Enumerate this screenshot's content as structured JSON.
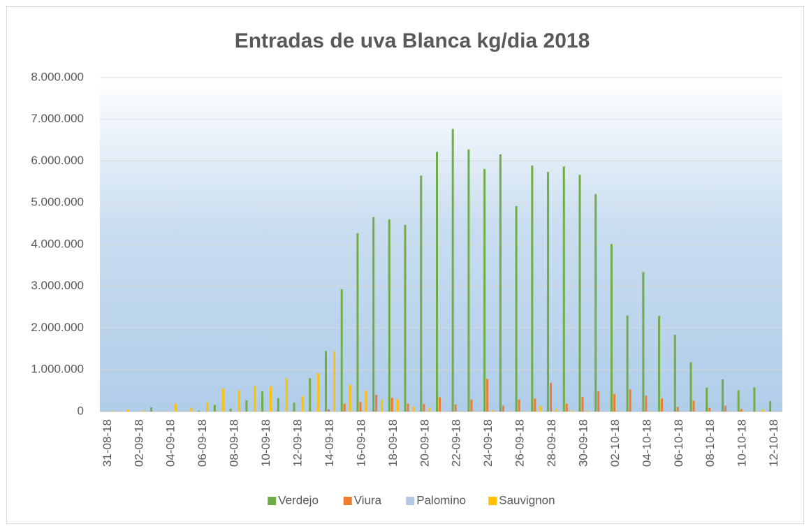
{
  "chart_data": {
    "type": "bar",
    "title": "Entradas de uva Blanca kg/dia 2018",
    "categories": [
      "31-08-18",
      null,
      "02-09-18",
      null,
      "04-09-18",
      null,
      "06-09-18",
      null,
      "08-09-18",
      null,
      "10-09-18",
      null,
      "12-09-18",
      null,
      "14-09-18",
      null,
      "16-09-18",
      null,
      "18-09-18",
      null,
      "20-09-18",
      null,
      "22-09-18",
      null,
      "24-09-18",
      null,
      "26-09-18",
      null,
      "28-09-18",
      null,
      "30-09-18",
      null,
      "02-10-18",
      null,
      "04-10-18",
      null,
      "06-10-18",
      null,
      "08-10-18",
      null,
      "10-10-18",
      null,
      "12-10-18"
    ],
    "series": [
      {
        "name": "Verdejo",
        "color": "#70ad47",
        "values": [
          0,
          0,
          0,
          100000,
          0,
          0,
          20000,
          160000,
          70000,
          270000,
          480000,
          320000,
          210000,
          800000,
          1450000,
          2930000,
          4270000,
          4660000,
          4600000,
          4470000,
          5650000,
          6220000,
          6770000,
          6280000,
          5810000,
          6160000,
          4920000,
          5890000,
          5740000,
          5870000,
          5670000,
          5210000,
          4010000,
          2300000,
          3340000,
          2290000,
          1840000,
          1180000,
          570000,
          770000,
          510000,
          580000,
          250000
        ]
      },
      {
        "name": "Viura",
        "color": "#ed7d31",
        "values": [
          0,
          0,
          0,
          0,
          0,
          0,
          0,
          0,
          0,
          0,
          0,
          0,
          0,
          0,
          50000,
          190000,
          230000,
          400000,
          330000,
          190000,
          180000,
          340000,
          170000,
          290000,
          780000,
          140000,
          290000,
          310000,
          690000,
          190000,
          350000,
          490000,
          420000,
          530000,
          380000,
          310000,
          110000,
          260000,
          90000,
          140000,
          60000,
          0,
          0
        ]
      },
      {
        "name": "Palomino",
        "color": "#b4c7e7",
        "values": [
          0,
          0,
          0,
          0,
          0,
          0,
          0,
          0,
          0,
          0,
          0,
          0,
          0,
          0,
          0,
          0,
          0,
          0,
          0,
          0,
          0,
          0,
          0,
          0,
          0,
          0,
          0,
          0,
          0,
          0,
          0,
          0,
          0,
          0,
          0,
          0,
          0,
          0,
          0,
          0,
          0,
          0,
          0
        ]
      },
      {
        "name": "Sauvignon",
        "color": "#ffc000",
        "values": [
          20000,
          50000,
          20000,
          0,
          190000,
          90000,
          230000,
          550000,
          510000,
          610000,
          600000,
          800000,
          370000,
          920000,
          1440000,
          640000,
          500000,
          280000,
          290000,
          120000,
          90000,
          0,
          0,
          0,
          30000,
          0,
          0,
          130000,
          70000,
          20000,
          20000,
          0,
          0,
          0,
          0,
          0,
          0,
          0,
          0,
          0,
          0,
          50000,
          0
        ]
      }
    ],
    "ylim": [
      0,
      8000000
    ],
    "yticks": [
      0,
      {
        "value": 1000000,
        "label": "1.000.000"
      },
      {
        "value": 2000000,
        "label": "2.000.000"
      },
      {
        "value": 3000000,
        "label": "3.000.000"
      },
      {
        "value": 4000000,
        "label": "4.000.000"
      },
      {
        "value": 5000000,
        "label": "5.000.000"
      },
      {
        "value": 6000000,
        "label": "6.000.000"
      },
      {
        "value": 7000000,
        "label": "7.000.000"
      },
      {
        "value": 8000000,
        "label": "8.000.000"
      }
    ],
    "grid": true,
    "legend": "bottom"
  }
}
